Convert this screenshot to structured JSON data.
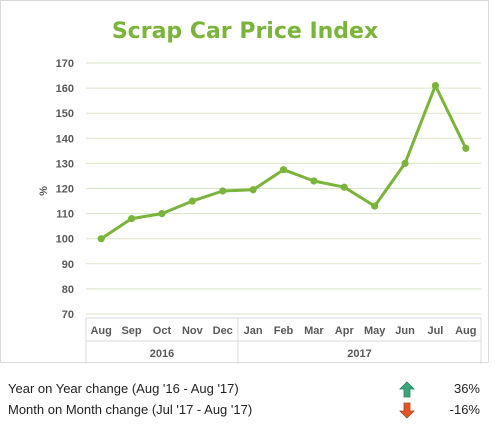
{
  "chart_data": {
    "type": "line",
    "title": "Scrap Car Price Index",
    "ylabel": "%",
    "xlabel": "",
    "ylim": [
      70,
      170
    ],
    "yticks": [
      70,
      80,
      90,
      100,
      110,
      120,
      130,
      140,
      150,
      160,
      170
    ],
    "grid": true,
    "categories": [
      "Aug",
      "Sep",
      "Oct",
      "Nov",
      "Dec",
      "Jan",
      "Feb",
      "Mar",
      "Apr",
      "May",
      "Jun",
      "Jul",
      "Aug"
    ],
    "groups": [
      {
        "label": "2016",
        "count": 5
      },
      {
        "label": "2017",
        "count": 8
      }
    ],
    "series": [
      {
        "values": [
          100,
          108,
          110,
          115,
          119,
          119.5,
          127.5,
          123,
          120.5,
          113,
          130,
          161,
          136
        ]
      }
    ],
    "colors": {
      "line": "#7ab43a",
      "grid": "#d9e5c7",
      "title": "#7ab43a"
    }
  },
  "summary": [
    {
      "label": "Year on Year change (Aug '16 - Aug '17)",
      "direction": "up",
      "icon": "arrow-up-icon",
      "value": "36%",
      "color": "#3aa67a"
    },
    {
      "label": "Month on Month change (Jul '17 - Aug '17)",
      "direction": "down",
      "icon": "arrow-down-icon",
      "value": "-16%",
      "color": "#e0552a"
    }
  ]
}
